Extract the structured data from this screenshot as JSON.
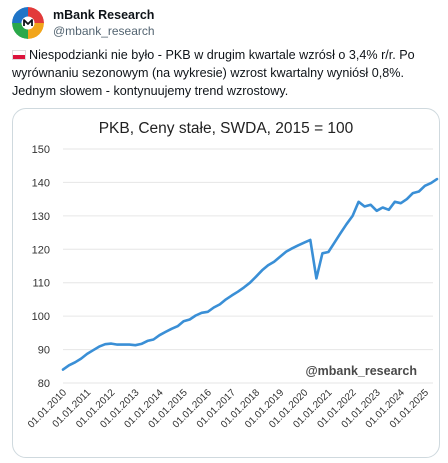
{
  "tweet": {
    "display_name": "mBank Research",
    "handle": "@mbank_research",
    "flag_icon": "poland-flag-icon",
    "text": "Niespodzianki nie było - PKB w drugim kwartale wzrósł o 3,4% r/r. Po wyrównaniu sezonowym (na wykresie) wzrost kwartalny wyniósł 0,8%. Jednym słowem - kontynuujemy trend wzrostowy."
  },
  "chart_data": {
    "type": "line",
    "title": "PKB, Ceny stałe, SWDA, 2015 = 100",
    "watermark": "@mbank_research",
    "line_color": "#3a8fd6",
    "ylim": [
      80,
      150
    ],
    "yticks": [
      80,
      90,
      100,
      110,
      120,
      130,
      140,
      150
    ],
    "xticks": [
      "01.01.2010",
      "01.01.2011",
      "01.01.2012",
      "01.01.2013",
      "01.01.2014",
      "01.01.2015",
      "01.01.2016",
      "01.01.2017",
      "01.01.2018",
      "01.01.2019",
      "01.01.2020",
      "01.01.2021",
      "01.01.2022",
      "01.01.2023",
      "01.01.2024",
      "01.01.2025"
    ],
    "grid": "horizontal",
    "x_start_year": 2010,
    "series": [
      {
        "values": [
          84.0,
          85.3,
          86.2,
          87.3,
          88.7,
          89.8,
          90.9,
          91.6,
          91.8,
          91.5,
          91.5,
          91.5,
          91.3,
          91.7,
          92.6,
          93.0,
          94.3,
          95.3,
          96.2,
          97.0,
          98.5,
          99.0,
          100.2,
          101.0,
          101.3,
          102.6,
          103.5,
          105.0,
          106.2,
          107.3,
          108.6,
          110.0,
          111.8,
          113.7,
          115.2,
          116.3,
          117.8,
          119.3,
          120.3,
          121.2,
          122.0,
          122.8,
          111.3,
          118.8,
          119.2,
          122.0,
          124.8,
          127.5,
          130.0,
          134.2,
          132.8,
          133.3,
          131.5,
          132.5,
          131.8,
          134.2,
          133.8,
          135.0,
          136.8,
          137.3,
          139.0,
          139.8,
          141.0
        ]
      }
    ]
  }
}
